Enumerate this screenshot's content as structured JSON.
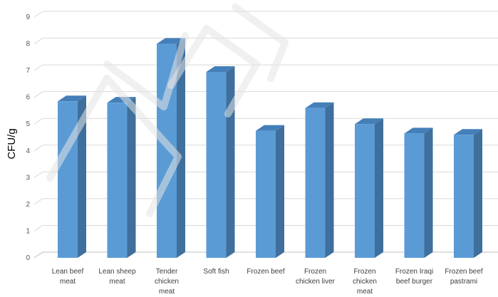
{
  "chart_data": {
    "type": "bar",
    "style": "3d-column",
    "categories": [
      [
        "Lean beef",
        "meat"
      ],
      [
        "Lean sheep",
        "meat"
      ],
      [
        "Tender",
        "chicken",
        "meat"
      ],
      [
        "Soft fish"
      ],
      [
        "Frozen beef"
      ],
      [
        "Frozen",
        "chicken liver"
      ],
      [
        "Frozen",
        "chicken",
        "meat"
      ],
      [
        "Frozen Iraqi",
        "beef burger"
      ],
      [
        "Frozen beef",
        "pastrami"
      ]
    ],
    "values": [
      5.85,
      5.8,
      8.0,
      6.95,
      4.75,
      5.6,
      5.0,
      4.65,
      4.6
    ],
    "title": "",
    "xlabel": "",
    "ylabel": "CFU/g",
    "ylim": [
      0,
      9
    ],
    "yticks": [
      0,
      1,
      2,
      3,
      4,
      5,
      6,
      7,
      8,
      9
    ],
    "grid": true,
    "legend": "none",
    "colors": {
      "bar_front": "#5b9bd5",
      "bar_side": "#3f6f9c",
      "bar_top": "#447fb8",
      "grid": "#d9d9d9",
      "axis": "#bfbfbf"
    }
  }
}
